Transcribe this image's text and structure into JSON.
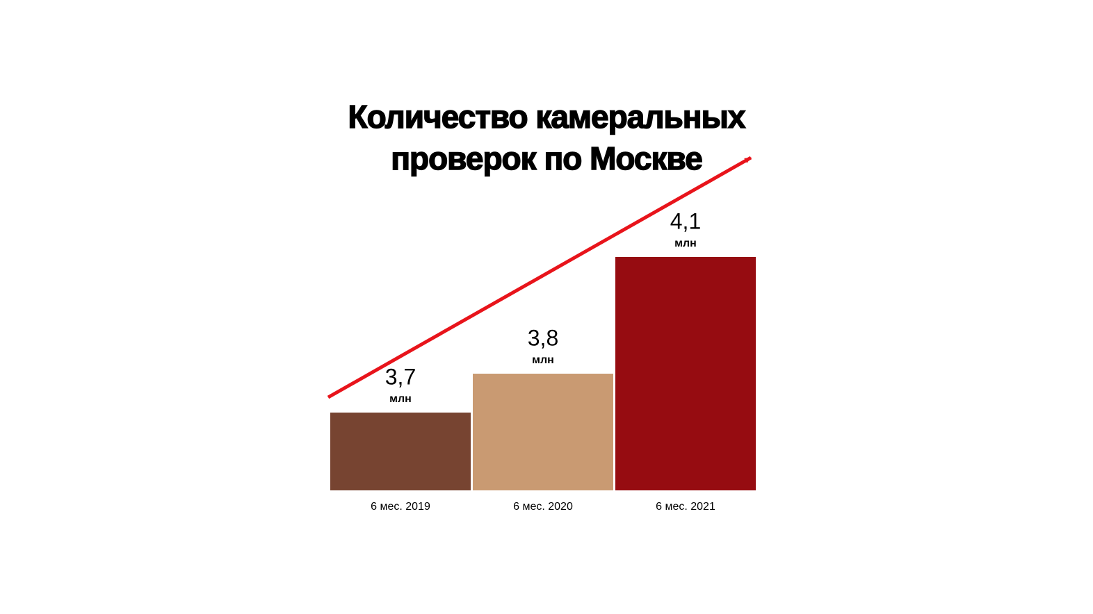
{
  "chart_data": {
    "type": "bar",
    "title": "Количество камеральных проверок по Москве",
    "categories": [
      "6 мес. 2019",
      "6 мес. 2020",
      "6 мес. 2021"
    ],
    "values": [
      3.7,
      3.8,
      4.1
    ],
    "value_labels": [
      "3,7",
      "3,8",
      "4,1"
    ],
    "value_unit": "млн",
    "colors": [
      "#774431",
      "#c99a72",
      "#960c11"
    ],
    "ylim": [
      3.5,
      4.2
    ]
  }
}
